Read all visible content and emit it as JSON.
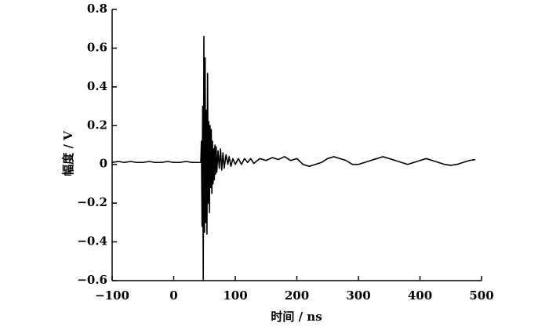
{
  "chart_data": {
    "type": "line",
    "x_label": "时间 / ns",
    "y_label": "幅度 / V",
    "x": [
      -100,
      -90,
      -80,
      -70,
      -60,
      -50,
      -40,
      -30,
      -20,
      -10,
      0,
      10,
      20,
      30,
      40,
      44,
      45,
      46,
      47,
      48,
      49,
      50,
      51,
      52,
      53,
      54,
      55,
      56,
      57,
      58,
      59,
      60,
      61,
      62,
      63,
      64,
      65,
      66,
      67,
      68,
      69,
      70,
      72,
      74,
      76,
      78,
      80,
      82,
      85,
      88,
      90,
      93,
      96,
      100,
      105,
      110,
      115,
      120,
      125,
      130,
      140,
      150,
      160,
      170,
      180,
      190,
      200,
      210,
      220,
      230,
      240,
      250,
      260,
      270,
      280,
      290,
      300,
      310,
      320,
      330,
      340,
      350,
      360,
      370,
      380,
      390,
      400,
      410,
      420,
      430,
      440,
      450,
      460,
      470,
      480,
      490
    ],
    "series": [
      {
        "color": "#000000",
        "values": [
          0.01,
          0.015,
          0.01,
          0.015,
          0.01,
          0.01,
          0.015,
          0.01,
          0.01,
          0.015,
          0.01,
          0.01,
          0.015,
          0.01,
          0.01,
          0.01,
          0.12,
          -0.32,
          0.3,
          -0.6,
          0.66,
          -0.35,
          0.55,
          -0.3,
          0.28,
          -0.36,
          0.47,
          -0.2,
          0.22,
          -0.25,
          0.2,
          -0.12,
          0.18,
          -0.15,
          0.12,
          -0.1,
          0.08,
          -0.08,
          0.1,
          -0.05,
          0.09,
          -0.04,
          0.07,
          -0.02,
          0.08,
          -0.03,
          0.06,
          -0.02,
          0.05,
          0.0,
          0.04,
          -0.01,
          0.03,
          0.0,
          0.03,
          0.0,
          0.03,
          0.01,
          0.03,
          0.005,
          0.03,
          0.02,
          0.035,
          0.025,
          0.04,
          0.02,
          0.03,
          0.0,
          -0.01,
          0.0,
          0.01,
          0.03,
          0.04,
          0.03,
          0.02,
          0.0,
          0.0,
          0.01,
          0.02,
          0.03,
          0.04,
          0.03,
          0.02,
          0.01,
          0.0,
          0.01,
          0.02,
          0.03,
          0.02,
          0.01,
          0.0,
          -0.005,
          0.0,
          0.01,
          0.02,
          0.025
        ]
      }
    ],
    "xlim": [
      -100,
      500
    ],
    "ylim": [
      -0.6,
      0.8
    ],
    "xticks": [
      {
        "value": -100,
        "label": "−100"
      },
      0,
      100,
      200,
      300,
      400,
      500
    ],
    "yticks": [
      {
        "value": -0.6,
        "label": "−0.6"
      },
      {
        "value": -0.4,
        "label": "−0.4"
      },
      {
        "value": -0.2,
        "label": "−0.2"
      },
      0,
      0.2,
      0.4,
      0.6,
      0.8
    ]
  }
}
